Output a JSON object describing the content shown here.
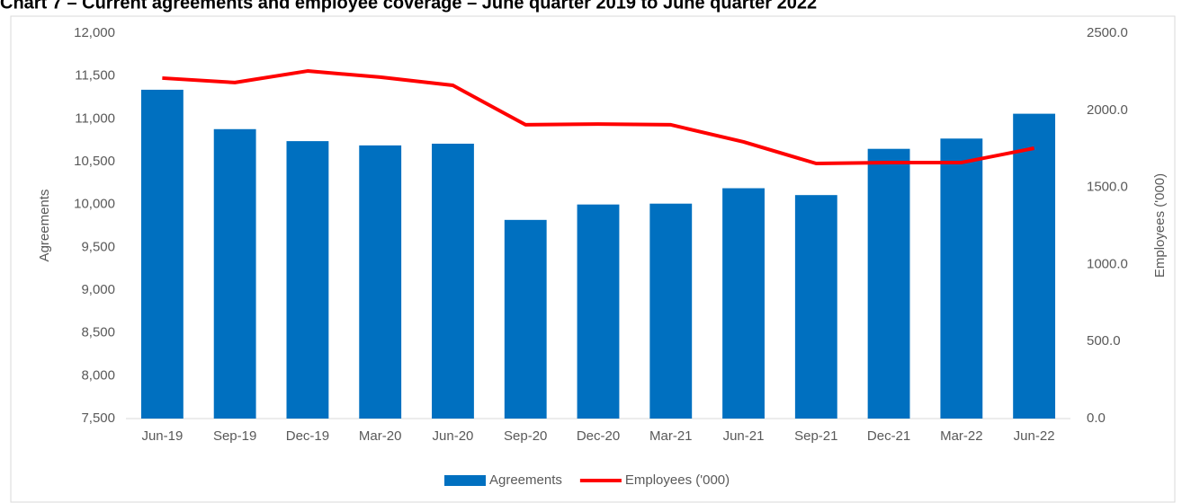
{
  "chart_data": {
    "type": "bar",
    "title": "Chart 7 – Current agreements and employee coverage – June quarter 2019 to June quarter 2022",
    "y_label": "Agreements",
    "y2_label": "Employees ('000)",
    "categories": [
      "Jun-19",
      "Sep-19",
      "Dec-19",
      "Mar-20",
      "Jun-20",
      "Sep-20",
      "Dec-20",
      "Mar-21",
      "Jun-21",
      "Sep-21",
      "Dec-21",
      "Mar-22",
      "Jun-22"
    ],
    "series": [
      {
        "name": "Agreements",
        "type": "bar",
        "color": "#0070c0",
        "values": [
          11340,
          10880,
          10740,
          10690,
          10710,
          9820,
          10000,
          10010,
          10190,
          10110,
          10650,
          10770,
          11060
        ]
      },
      {
        "name": "Employees ('000)",
        "type": "line",
        "axis": "y2",
        "color": "#ff0000",
        "values": [
          2209,
          2180,
          2255,
          2215,
          2162,
          1906,
          1911,
          1906,
          1795,
          1655,
          1661,
          1661,
          1754
        ]
      }
    ],
    "ylim": [
      7500,
      12000
    ],
    "yticks": [
      {
        "value": 7500,
        "label": "7,500"
      },
      {
        "value": 8000,
        "label": "8,000"
      },
      {
        "value": 8500,
        "label": "8,500"
      },
      {
        "value": 9000,
        "label": "9,000"
      },
      {
        "value": 9500,
        "label": "9,500"
      },
      {
        "value": 10000,
        "label": "10,000"
      },
      {
        "value": 10500,
        "label": "10,500"
      },
      {
        "value": 11000,
        "label": "11,000"
      },
      {
        "value": 11500,
        "label": "11,500"
      },
      {
        "value": 12000,
        "label": "12,000"
      }
    ],
    "y2lim": [
      0,
      2500
    ],
    "y2ticks": [
      {
        "value": 0,
        "label": "0.0"
      },
      {
        "value": 500,
        "label": "500.0"
      },
      {
        "value": 1000,
        "label": "1000.0"
      },
      {
        "value": 1500,
        "label": "1500.0"
      },
      {
        "value": 2000,
        "label": "2000.0"
      },
      {
        "value": 2500,
        "label": "2500.0"
      }
    ],
    "grid": false,
    "legend": "bottom"
  }
}
